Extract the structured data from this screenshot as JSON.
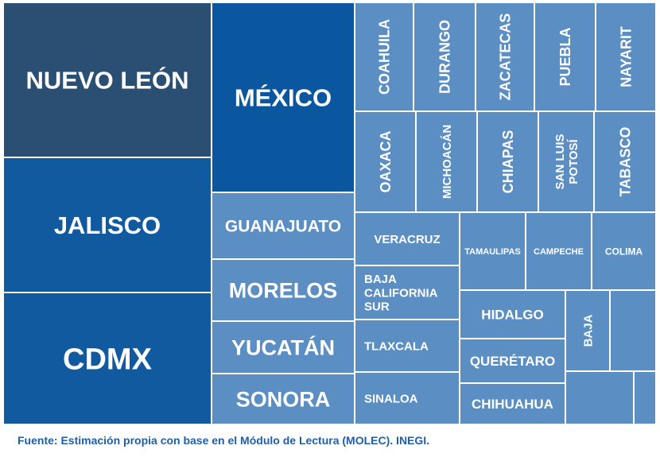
{
  "chart_data": {
    "type": "treemap",
    "colors": {
      "darkest": "#2a4f73",
      "dark": "#0a57a0",
      "mid": "#125aa0",
      "light": "#5b8fc3",
      "background_stroke": "#ffffff"
    },
    "cells": [
      {
        "label": "NUEVO LEÓN",
        "shade": "darkest"
      },
      {
        "label": "JALISCO",
        "shade": "mid"
      },
      {
        "label": "CDMX",
        "shade": "mid"
      },
      {
        "label": "MÉXICO",
        "shade": "dark"
      },
      {
        "label": "GUANAJUATO",
        "shade": "light"
      },
      {
        "label": "MORELOS",
        "shade": "light"
      },
      {
        "label": "YUCATÁN",
        "shade": "light"
      },
      {
        "label": "SONORA",
        "shade": "light"
      },
      {
        "label": "COAHUILA",
        "shade": "light"
      },
      {
        "label": "DURANGO",
        "shade": "light"
      },
      {
        "label": "ZACATECAS",
        "shade": "light"
      },
      {
        "label": "PUEBLA",
        "shade": "light"
      },
      {
        "label": "NAYARIT",
        "shade": "light"
      },
      {
        "label": "OAXACA",
        "shade": "light"
      },
      {
        "label": "MICHOACÁN",
        "shade": "light"
      },
      {
        "label": "CHIAPAS",
        "shade": "light"
      },
      {
        "label": "SAN LUIS POTOSÍ",
        "shade": "light"
      },
      {
        "label": "TABASCO",
        "shade": "light"
      },
      {
        "label": "VERACRUZ",
        "shade": "light"
      },
      {
        "label": "TAMAULIPAS",
        "shade": "light"
      },
      {
        "label": "CAMPECHE",
        "shade": "light"
      },
      {
        "label": "COLIMA",
        "shade": "light"
      },
      {
        "label": "BAJA CALIFORNIA SUR",
        "shade": "light"
      },
      {
        "label": "HIDALGO",
        "shade": "light"
      },
      {
        "label": "BAJA",
        "shade": "light"
      },
      {
        "label": "",
        "shade": "light"
      },
      {
        "label": "TLAXCALA",
        "shade": "light"
      },
      {
        "label": "QUERÉTARO",
        "shade": "light"
      },
      {
        "label": "SINALOA",
        "shade": "light"
      },
      {
        "label": "CHIHUAHUA",
        "shade": "light"
      },
      {
        "label": "",
        "shade": "light"
      },
      {
        "label": "",
        "shade": "light"
      }
    ]
  },
  "source_note": "Fuente: Estimación propia con base en el Módulo de Lectura (MOLEC). INEGI."
}
